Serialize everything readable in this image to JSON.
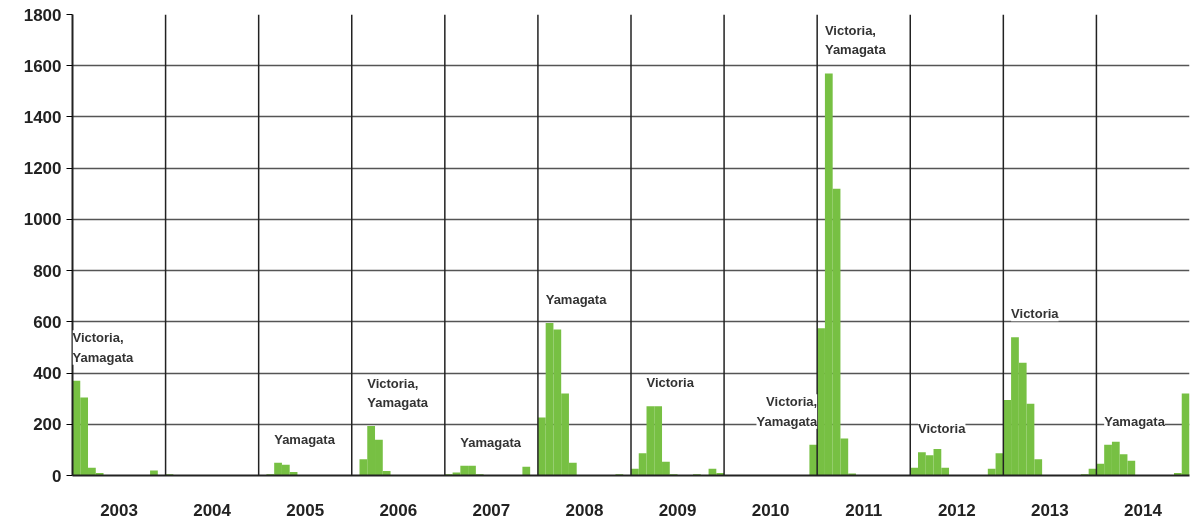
{
  "chart_data": {
    "type": "bar",
    "x": [
      "2003-01",
      "2003-02",
      "2003-03",
      "2003-04",
      "2003-05",
      "2003-06",
      "2003-07",
      "2003-08",
      "2003-09",
      "2003-10",
      "2003-11",
      "2003-12",
      "2004-01",
      "2004-02",
      "2004-03",
      "2004-04",
      "2004-05",
      "2004-06",
      "2004-07",
      "2004-08",
      "2004-09",
      "2004-10",
      "2004-11",
      "2004-12",
      "2005-01",
      "2005-02",
      "2005-03",
      "2005-04",
      "2005-05",
      "2005-06",
      "2005-07",
      "2005-08",
      "2005-09",
      "2005-10",
      "2005-11",
      "2005-12",
      "2006-01",
      "2006-02",
      "2006-03",
      "2006-04",
      "2006-05",
      "2006-06",
      "2006-07",
      "2006-08",
      "2006-09",
      "2006-10",
      "2006-11",
      "2006-12",
      "2007-01",
      "2007-02",
      "2007-03",
      "2007-04",
      "2007-05",
      "2007-06",
      "2007-07",
      "2007-08",
      "2007-09",
      "2007-10",
      "2007-11",
      "2007-12",
      "2008-01",
      "2008-02",
      "2008-03",
      "2008-04",
      "2008-05",
      "2008-06",
      "2008-07",
      "2008-08",
      "2008-09",
      "2008-10",
      "2008-11",
      "2008-12",
      "2009-01",
      "2009-02",
      "2009-03",
      "2009-04",
      "2009-05",
      "2009-06",
      "2009-07",
      "2009-08",
      "2009-09",
      "2009-10",
      "2009-11",
      "2009-12",
      "2010-01",
      "2010-02",
      "2010-03",
      "2010-04",
      "2010-05",
      "2010-06",
      "2010-07",
      "2010-08",
      "2010-09",
      "2010-10",
      "2010-11",
      "2010-12",
      "2011-01",
      "2011-02",
      "2011-03",
      "2011-04",
      "2011-05",
      "2011-06",
      "2011-07",
      "2011-08",
      "2011-09",
      "2011-10",
      "2011-11",
      "2011-12",
      "2012-01",
      "2012-02",
      "2012-03",
      "2012-04",
      "2012-05",
      "2012-06",
      "2012-07",
      "2012-08",
      "2012-09",
      "2012-10",
      "2012-11",
      "2012-12",
      "2013-01",
      "2013-02",
      "2013-03",
      "2013-04",
      "2013-05",
      "2013-06",
      "2013-07",
      "2013-08",
      "2013-09",
      "2013-10",
      "2013-11",
      "2013-12",
      "2014-01",
      "2014-02",
      "2014-03",
      "2014-04",
      "2014-05",
      "2014-06",
      "2014-07",
      "2014-08",
      "2014-09",
      "2014-10",
      "2014-11",
      "2014-12"
    ],
    "series": [
      {
        "color": "#77c043",
        "values": [
          370,
          305,
          30,
          10,
          2,
          0,
          0,
          0,
          0,
          0,
          20,
          0,
          5,
          1,
          0,
          0,
          0,
          0,
          0,
          0,
          0,
          0,
          0,
          0,
          2,
          5,
          50,
          42,
          14,
          2,
          0,
          0,
          0,
          0,
          0,
          2,
          2,
          63,
          193,
          140,
          18,
          0,
          0,
          0,
          0,
          0,
          0,
          0,
          5,
          12,
          38,
          38,
          5,
          1,
          0,
          0,
          0,
          0,
          34,
          0,
          226,
          595,
          570,
          320,
          50,
          0,
          0,
          0,
          0,
          0,
          5,
          0,
          26,
          87,
          270,
          270,
          54,
          5,
          1,
          1,
          5,
          1,
          26,
          10,
          1,
          1,
          1,
          1,
          0,
          0,
          0,
          0,
          0,
          0,
          2,
          120,
          575,
          1570,
          1120,
          144,
          8,
          1,
          1,
          0,
          0,
          0,
          0,
          0,
          30,
          91,
          79,
          103,
          30,
          0,
          0,
          0,
          0,
          0,
          26,
          87,
          295,
          540,
          440,
          280,
          63,
          0,
          0,
          0,
          0,
          0,
          5,
          26,
          46,
          120,
          132,
          83,
          58,
          0,
          0,
          0,
          0,
          0,
          10,
          320
        ]
      }
    ],
    "xlim": [
      "2003-01",
      "2015-01"
    ],
    "xticks": [
      {
        "value": "2003-07",
        "label": "2003"
      },
      {
        "value": "2004-07",
        "label": "2004"
      },
      {
        "value": "2005-07",
        "label": "2005"
      },
      {
        "value": "2006-07",
        "label": "2006"
      },
      {
        "value": "2007-07",
        "label": "2007"
      },
      {
        "value": "2008-07",
        "label": "2008"
      },
      {
        "value": "2009-07",
        "label": "2009"
      },
      {
        "value": "2010-07",
        "label": "2010"
      },
      {
        "value": "2011-07",
        "label": "2011"
      },
      {
        "value": "2012-07",
        "label": "2012"
      },
      {
        "value": "2013-07",
        "label": "2013"
      },
      {
        "value": "2014-07",
        "label": "2014"
      }
    ],
    "ylim": [
      0,
      1800
    ],
    "yticks": [
      0,
      200,
      400,
      600,
      800,
      1000,
      1200,
      1400,
      1600,
      1800
    ],
    "grid": "y",
    "ref_lines": [
      {
        "axis": "x",
        "value": "2004-01",
        "color": "#222222"
      },
      {
        "axis": "x",
        "value": "2005-01",
        "color": "#222222"
      },
      {
        "axis": "x",
        "value": "2006-01",
        "color": "#222222"
      },
      {
        "axis": "x",
        "value": "2007-01",
        "color": "#222222"
      },
      {
        "axis": "x",
        "value": "2008-01",
        "color": "#222222"
      },
      {
        "axis": "x",
        "value": "2009-01",
        "color": "#222222"
      },
      {
        "axis": "x",
        "value": "2010-01",
        "color": "#222222"
      },
      {
        "axis": "x",
        "value": "2011-01",
        "color": "#222222"
      },
      {
        "axis": "x",
        "value": "2012-01",
        "color": "#222222"
      },
      {
        "axis": "x",
        "value": "2013-01",
        "color": "#222222"
      },
      {
        "axis": "x",
        "value": "2014-01",
        "color": "#222222"
      }
    ],
    "annotations": [
      {
        "text": "Victoria,\nYamagata",
        "x": "2003-01",
        "y": 370
      },
      {
        "text": "Yamagata",
        "x": "2005-03",
        "y": 50
      },
      {
        "text": "Victoria,\nYamagata",
        "x": "2006-03",
        "y": 193
      },
      {
        "text": "Yamagata",
        "x": "2007-03",
        "y": 38
      },
      {
        "text": "Yamagata",
        "x": "2008-02",
        "y": 595
      },
      {
        "text": "Victoria",
        "x": "2009-03",
        "y": 270
      },
      {
        "text": "Victoria,\nYamagata",
        "x": "2010-12",
        "y": 120
      },
      {
        "text": "Victoria,\nYamagata",
        "x": "2011-02",
        "y": 1570
      },
      {
        "text": "Victoria",
        "x": "2012-02",
        "y": 91
      },
      {
        "text": "Victoria",
        "x": "2013-02",
        "y": 540
      },
      {
        "text": "Yamagata",
        "x": "2014-02",
        "y": 120
      }
    ]
  }
}
